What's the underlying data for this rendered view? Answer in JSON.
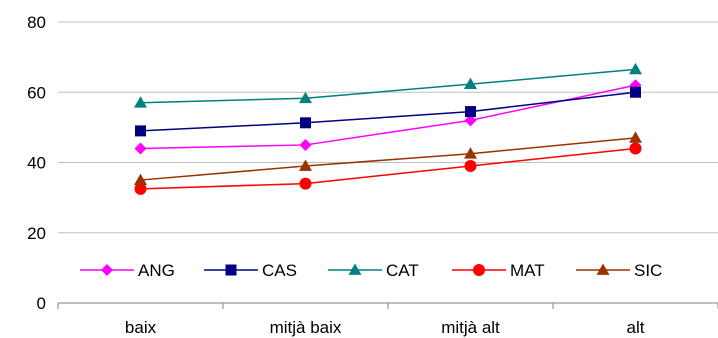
{
  "chart_data": {
    "type": "line",
    "categories": [
      "baix",
      "mitjà baix",
      "mitjà alt",
      "alt"
    ],
    "ylim": [
      0,
      80
    ],
    "yticks": [
      0,
      20,
      40,
      60,
      80
    ],
    "grid": true,
    "legend_position": "bottom-inside",
    "series": [
      {
        "name": "ANG",
        "color": "#FF00FF",
        "marker": "diamond",
        "values": [
          44.0,
          45.0,
          52.0,
          62.0
        ]
      },
      {
        "name": "CAS",
        "color": "#000080",
        "marker": "square",
        "values": [
          49.0,
          51.3,
          54.5,
          60.0
        ]
      },
      {
        "name": "CAT",
        "color": "#008080",
        "marker": "triangle",
        "values": [
          57.0,
          58.3,
          62.3,
          66.5
        ]
      },
      {
        "name": "MAT",
        "color": "#FF0000",
        "marker": "circle",
        "values": [
          32.5,
          34.0,
          39.0,
          44.0
        ]
      },
      {
        "name": "SIC",
        "color": "#993300",
        "marker": "triangle",
        "values": [
          35.0,
          39.0,
          42.5,
          47.0
        ]
      }
    ]
  }
}
